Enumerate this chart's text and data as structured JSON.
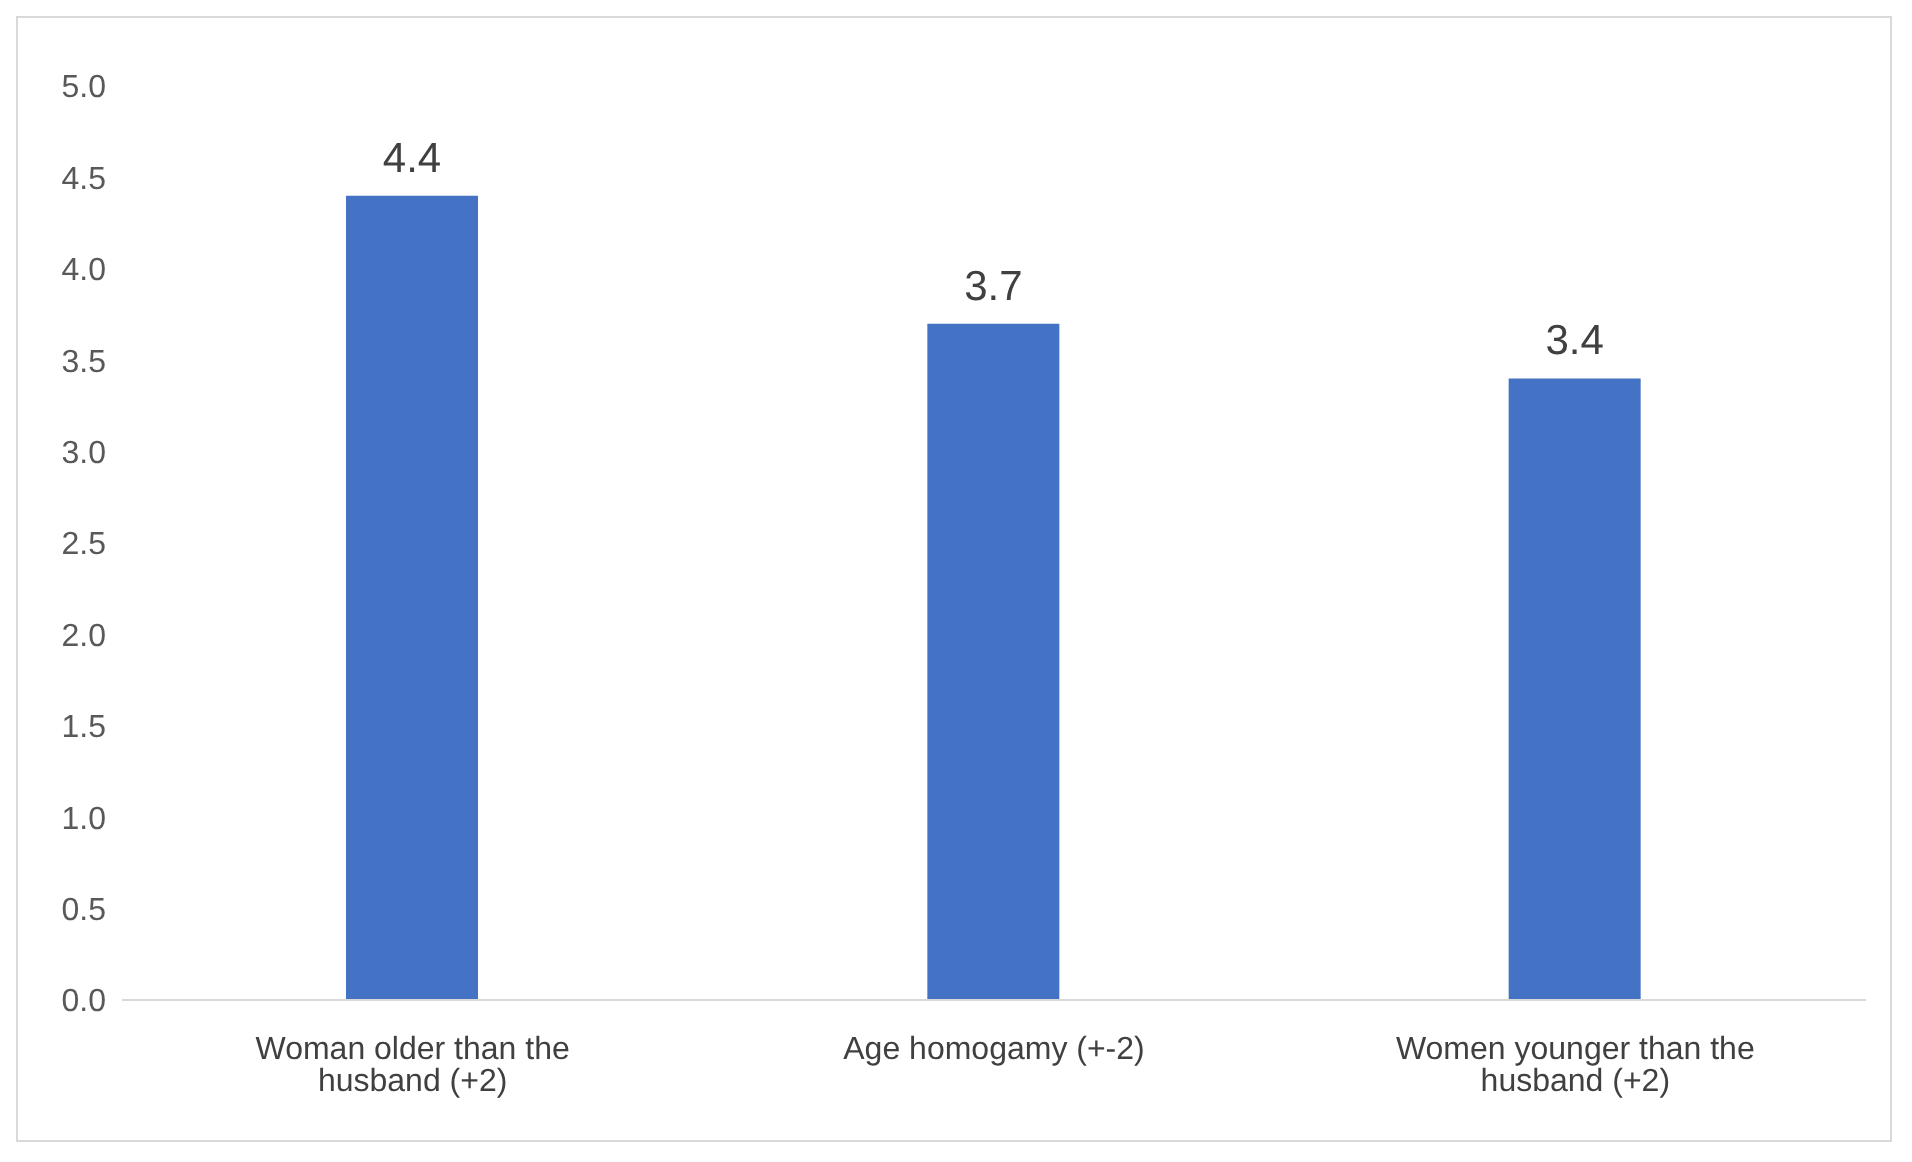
{
  "chart_data": {
    "type": "bar",
    "categories": [
      "Woman older than the husband (+2)",
      "Age homogamy (+-2)",
      "Women younger than the husband (+2)"
    ],
    "values": [
      4.4,
      3.7,
      3.4
    ],
    "color": "#4472c4",
    "ylim": [
      0,
      5
    ],
    "yticks": [
      {
        "value": 0,
        "label": "0.0"
      },
      {
        "value": 0.5,
        "label": "0.5"
      },
      {
        "value": 1,
        "label": "1.0"
      },
      {
        "value": 1.5,
        "label": "1.5"
      },
      {
        "value": 2,
        "label": "2.0"
      },
      {
        "value": 2.5,
        "label": "2.5"
      },
      {
        "value": 3,
        "label": "3.0"
      },
      {
        "value": 3.5,
        "label": "3.5"
      },
      {
        "value": 4,
        "label": "4.0"
      },
      {
        "value": 4.5,
        "label": "4.5"
      },
      {
        "value": 5,
        "label": "5.0"
      }
    ],
    "grid": false,
    "data_labels": true
  }
}
